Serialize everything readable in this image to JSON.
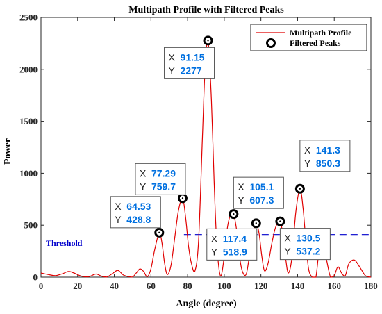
{
  "chart_data": {
    "type": "line",
    "title": "Multipath Profile with Filtered Peaks",
    "xlabel": "Angle (degree)",
    "ylabel": "Power",
    "xlim": [
      0,
      180
    ],
    "ylim": [
      0,
      2500
    ],
    "x_ticks": [
      "0",
      "20",
      "40",
      "60",
      "80",
      "100",
      "120",
      "140",
      "160",
      "180"
    ],
    "y_ticks": [
      "0",
      "500",
      "1000",
      "1500",
      "2000",
      "2500"
    ],
    "grid": false,
    "legend_position": "top-right",
    "series": [
      {
        "name": "Multipath Profile",
        "color": "#e00000",
        "x": [
          0,
          4,
          8,
          12,
          15,
          18,
          22,
          26,
          30,
          33,
          36,
          39,
          42,
          45,
          48,
          50,
          52,
          54,
          56,
          58,
          60,
          62,
          64.53,
          66,
          67.5,
          69,
          71,
          73,
          75,
          77.29,
          79,
          80.5,
          82,
          84,
          86,
          88,
          89.5,
          91.15,
          93,
          94.5,
          96,
          98,
          100,
          101.5,
          103,
          105.1,
          107,
          108.5,
          110,
          112,
          114,
          115.5,
          117.4,
          119,
          120.5,
          122,
          124,
          126,
          128,
          130.5,
          132,
          133.5,
          135,
          137,
          139,
          141.3,
          143,
          144.5,
          146,
          148,
          150,
          152,
          154,
          156,
          158,
          160,
          162,
          164,
          166,
          168,
          171,
          174,
          177,
          180
        ],
        "y": [
          40,
          25,
          15,
          35,
          55,
          40,
          10,
          5,
          30,
          10,
          2,
          35,
          65,
          20,
          5,
          2,
          40,
          80,
          55,
          5,
          80,
          260,
          428.8,
          330,
          130,
          25,
          120,
          380,
          640,
          759.7,
          560,
          300,
          140,
          60,
          350,
          1300,
          2000,
          2277,
          1700,
          900,
          300,
          10,
          200,
          450,
          580,
          607.3,
          420,
          180,
          50,
          30,
          240,
          420,
          518.9,
          420,
          200,
          60,
          140,
          330,
          480,
          537.2,
          400,
          180,
          40,
          200,
          620,
          850.3,
          660,
          350,
          80,
          0,
          0,
          300,
          330,
          150,
          0,
          15,
          100,
          40,
          15,
          130,
          165,
          95,
          15,
          0
        ]
      }
    ],
    "peaks": {
      "name": "Filtered Peaks",
      "points": [
        {
          "x": 64.53,
          "y": 428.8,
          "x_label": "64.53",
          "y_label": "428.8"
        },
        {
          "x": 77.29,
          "y": 759.7,
          "x_label": "77.29",
          "y_label": "759.7"
        },
        {
          "x": 91.15,
          "y": 2277,
          "x_label": "91.15",
          "y_label": "2277"
        },
        {
          "x": 105.1,
          "y": 607.3,
          "x_label": "105.1",
          "y_label": "607.3"
        },
        {
          "x": 117.4,
          "y": 518.9,
          "x_label": "117.4",
          "y_label": "518.9"
        },
        {
          "x": 130.5,
          "y": 537.2,
          "x_label": "130.5",
          "y_label": "537.2"
        },
        {
          "x": 141.3,
          "y": 850.3,
          "x_label": "141.3",
          "y_label": "850.3"
        }
      ]
    },
    "threshold": {
      "label": "Threshold",
      "value": 410,
      "x_start": 78,
      "color": "#0000cc"
    },
    "datatip_keys": {
      "x": "X",
      "y": "Y"
    }
  }
}
